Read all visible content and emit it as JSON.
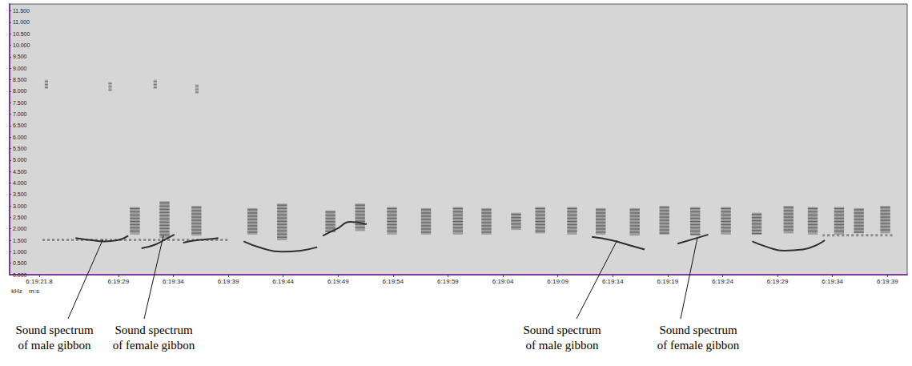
{
  "chart_data": {
    "type": "spectrogram",
    "x_label": "m:s",
    "y_label": "kHz",
    "grid": false,
    "xlim": [
      0,
      81.7
    ],
    "xticks": [
      {
        "value": 2.7,
        "label": "6:19:21.8"
      },
      {
        "value": 9.9,
        "label": "6:19:29"
      },
      {
        "value": 14.9,
        "label": "6:19:34"
      },
      {
        "value": 19.9,
        "label": "6:19:39"
      },
      {
        "value": 24.9,
        "label": "6:19:44"
      },
      {
        "value": 29.9,
        "label": "6:19:49"
      },
      {
        "value": 34.9,
        "label": "6:19:54"
      },
      {
        "value": 39.9,
        "label": "6:19:59"
      },
      {
        "value": 44.9,
        "label": "6:19:04"
      },
      {
        "value": 49.9,
        "label": "6:19:09"
      },
      {
        "value": 54.9,
        "label": "6:19:14"
      },
      {
        "value": 59.9,
        "label": "6:19:19"
      },
      {
        "value": 64.9,
        "label": "6:19:24"
      },
      {
        "value": 69.9,
        "label": "6:19:29"
      },
      {
        "value": 74.9,
        "label": "6:19:34"
      },
      {
        "value": 79.9,
        "label": "6:19:39"
      }
    ],
    "ylim": [
      0,
      11.8
    ],
    "yticks": [
      {
        "value": 0,
        "label": "0.000"
      },
      {
        "value": 0.5,
        "label": "0.500"
      },
      {
        "value": 1,
        "label": "1.000"
      },
      {
        "value": 1.5,
        "label": "1.500"
      },
      {
        "value": 2,
        "label": "2.000"
      },
      {
        "value": 2.5,
        "label": "2.500"
      },
      {
        "value": 3,
        "label": "3.000"
      },
      {
        "value": 3.5,
        "label": "3.500"
      },
      {
        "value": 4,
        "label": "4.000"
      },
      {
        "value": 4.5,
        "label": "4.500"
      },
      {
        "value": 5,
        "label": "5.000"
      },
      {
        "value": 5.5,
        "label": "5.500"
      },
      {
        "value": 6,
        "label": "6.000"
      },
      {
        "value": 6.5,
        "label": "6.500"
      },
      {
        "value": 7,
        "label": "7.000"
      },
      {
        "value": 7.5,
        "label": "7.500"
      },
      {
        "value": 8,
        "label": "8.000"
      },
      {
        "value": 8.5,
        "label": "8.500"
      },
      {
        "value": 9,
        "label": "9.000"
      },
      {
        "value": 9.5,
        "label": "9.500"
      },
      {
        "value": 10,
        "label": "10.000"
      },
      {
        "value": 10.5,
        "label": "10.500"
      },
      {
        "value": 11,
        "label": "11.000"
      },
      {
        "value": 11.5,
        "label": "11.500"
      }
    ],
    "series": [
      {
        "type": "rect",
        "color": "#5c5c5c",
        "values": [
          [
            10.95,
            11.85,
            1.75,
            2.95
          ],
          [
            13.65,
            14.55,
            1.6,
            3.2
          ],
          [
            16.55,
            17.45,
            1.7,
            3.0
          ],
          [
            21.65,
            22.55,
            1.75,
            2.9
          ],
          [
            24.35,
            25.25,
            1.5,
            3.1
          ],
          [
            28.75,
            29.65,
            1.85,
            2.8
          ],
          [
            31.45,
            32.35,
            1.9,
            3.1
          ],
          [
            34.35,
            35.25,
            1.75,
            2.95
          ],
          [
            37.45,
            38.35,
            1.75,
            2.9
          ],
          [
            40.35,
            41.25,
            1.75,
            2.95
          ],
          [
            42.95,
            43.85,
            1.75,
            2.9
          ],
          [
            45.65,
            46.55,
            1.95,
            2.7
          ],
          [
            47.85,
            48.75,
            1.8,
            2.95
          ],
          [
            50.75,
            51.65,
            1.75,
            2.95
          ],
          [
            53.35,
            54.25,
            1.75,
            2.9
          ],
          [
            56.45,
            57.35,
            1.7,
            2.9
          ],
          [
            59.15,
            60.05,
            1.75,
            3.0
          ],
          [
            61.95,
            62.85,
            1.7,
            2.95
          ],
          [
            64.75,
            65.65,
            1.75,
            2.95
          ],
          [
            67.55,
            68.45,
            1.75,
            2.7
          ],
          [
            70.45,
            71.35,
            1.8,
            3.0
          ],
          [
            72.65,
            73.55,
            1.75,
            2.95
          ],
          [
            75.05,
            75.95,
            1.75,
            2.95
          ],
          [
            76.85,
            77.75,
            1.8,
            2.9
          ],
          [
            79.25,
            80.15,
            1.8,
            3.0
          ]
        ]
      },
      {
        "type": "rect",
        "color": "#7a7a7a",
        "values": [
          [
            3.2,
            3.5,
            8.1,
            8.5
          ],
          [
            9.0,
            9.3,
            8.0,
            8.4
          ],
          [
            13.1,
            13.4,
            8.1,
            8.5
          ],
          [
            16.9,
            17.2,
            7.9,
            8.3
          ]
        ]
      },
      {
        "type": "line",
        "color": "#8a8a8a",
        "line_style": "dotted",
        "values": [
          [
            3.0,
            1.52
          ],
          [
            20.0,
            1.52
          ]
        ]
      },
      {
        "type": "line",
        "color": "#8a8a8a",
        "line_style": "dotted",
        "values": [
          [
            74.0,
            1.72
          ],
          [
            80.5,
            1.72
          ]
        ]
      },
      {
        "type": "line",
        "color": "#2e2e2e",
        "line_style": "solid",
        "values": [
          [
            6.0,
            1.6
          ],
          [
            7.5,
            1.5
          ],
          [
            8.6,
            1.45
          ],
          [
            9.8,
            1.5
          ],
          [
            10.8,
            1.7
          ]
        ]
      },
      {
        "type": "line",
        "color": "#2e2e2e",
        "line_style": "solid",
        "values": [
          [
            12.0,
            1.15
          ],
          [
            13.2,
            1.3
          ],
          [
            14.2,
            1.55
          ],
          [
            15.0,
            1.75
          ]
        ]
      },
      {
        "type": "line",
        "color": "#2e2e2e",
        "line_style": "solid",
        "values": [
          [
            15.8,
            1.4
          ],
          [
            17.0,
            1.5
          ],
          [
            18.2,
            1.55
          ],
          [
            19.0,
            1.6
          ]
        ]
      },
      {
        "type": "line",
        "color": "#2e2e2e",
        "line_style": "solid",
        "values": [
          [
            21.3,
            1.45
          ],
          [
            23.0,
            1.15
          ],
          [
            24.8,
            1.0
          ],
          [
            26.5,
            1.05
          ],
          [
            28.0,
            1.2
          ]
        ]
      },
      {
        "type": "line",
        "color": "#2e2e2e",
        "line_style": "solid",
        "values": [
          [
            28.5,
            1.7
          ],
          [
            29.8,
            2.0
          ],
          [
            31.0,
            2.3
          ],
          [
            32.5,
            2.2
          ]
        ]
      },
      {
        "type": "line",
        "color": "#2e2e2e",
        "line_style": "solid",
        "values": [
          [
            53.0,
            1.65
          ],
          [
            54.8,
            1.5
          ],
          [
            56.3,
            1.3
          ],
          [
            57.8,
            1.1
          ]
        ]
      },
      {
        "type": "line",
        "color": "#2e2e2e",
        "line_style": "solid",
        "values": [
          [
            60.8,
            1.35
          ],
          [
            62.2,
            1.55
          ],
          [
            63.6,
            1.75
          ]
        ]
      },
      {
        "type": "line",
        "color": "#2e2e2e",
        "line_style": "solid",
        "values": [
          [
            67.6,
            1.45
          ],
          [
            69.0,
            1.2
          ],
          [
            70.5,
            1.05
          ],
          [
            72.2,
            1.1
          ],
          [
            74.2,
            1.5
          ]
        ]
      }
    ],
    "annotations": [
      {
        "text": "Sound spectrum of male gibbon",
        "x": 8.5,
        "y": 1.55
      },
      {
        "text": "Sound spectrum of female gibbon",
        "x": 14.0,
        "y": 1.7
      },
      {
        "text": "Sound spectrum of male gibbon",
        "x": 55.3,
        "y": 1.5
      },
      {
        "text": "Sound spectrum of female gibbon",
        "x": 62.6,
        "y": 1.6
      }
    ]
  }
}
